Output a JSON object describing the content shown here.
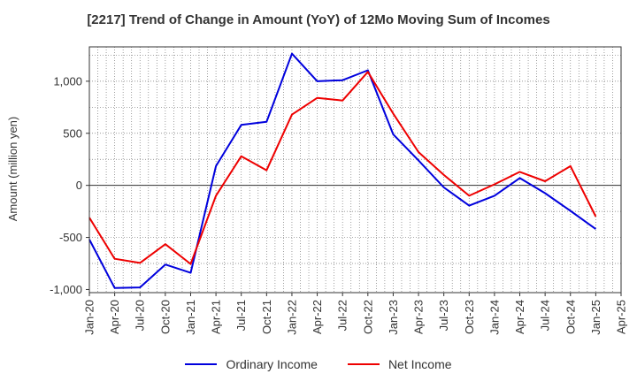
{
  "chart_data": {
    "type": "line",
    "title": "[2217]  Trend of Change in Amount (YoY) of 12Mo Moving Sum of Incomes",
    "ylabel": "Amount (million yen)",
    "xlabel": "",
    "ylim": [
      -1030,
      1330
    ],
    "yticks": [
      -1000,
      -500,
      0,
      500,
      1000
    ],
    "ytick_labels": [
      "-1,000",
      "-500",
      "0",
      "500",
      "1,000"
    ],
    "x_ticks": [
      "Jan-20",
      "Apr-20",
      "Jul-20",
      "Oct-20",
      "Jan-21",
      "Apr-21",
      "Jul-21",
      "Oct-21",
      "Jan-22",
      "Apr-22",
      "Jul-22",
      "Oct-22",
      "Jan-23",
      "Apr-23",
      "Jul-23",
      "Oct-23",
      "Jan-24",
      "Apr-24",
      "Jul-24",
      "Oct-24",
      "Jan-25",
      "Apr-25"
    ],
    "x": [
      "Jan-20",
      "Apr-20",
      "Jul-20",
      "Oct-20",
      "Jan-21",
      "Apr-21",
      "Jul-21",
      "Oct-21",
      "Jan-22",
      "Apr-22",
      "Jul-22",
      "Oct-22",
      "Jan-23",
      "Apr-23",
      "Jul-23",
      "Oct-23",
      "Jan-24",
      "Apr-24",
      "Jul-24",
      "Oct-24",
      "Jan-25"
    ],
    "series": [
      {
        "name": "Ordinary Income",
        "color": "#0000dd",
        "values": [
          -520,
          -985,
          -980,
          -760,
          -840,
          185,
          580,
          610,
          1265,
          1000,
          1010,
          1105,
          490,
          240,
          -20,
          -195,
          -100,
          70,
          -75,
          -245,
          -420
        ]
      },
      {
        "name": "Net Income",
        "color": "#ee0000",
        "values": [
          -310,
          -705,
          -745,
          -565,
          -755,
          -100,
          280,
          145,
          680,
          840,
          815,
          1090,
          690,
          320,
          100,
          -100,
          10,
          130,
          40,
          185,
          -300
        ]
      }
    ],
    "grid": true,
    "legend_position": "bottom"
  }
}
